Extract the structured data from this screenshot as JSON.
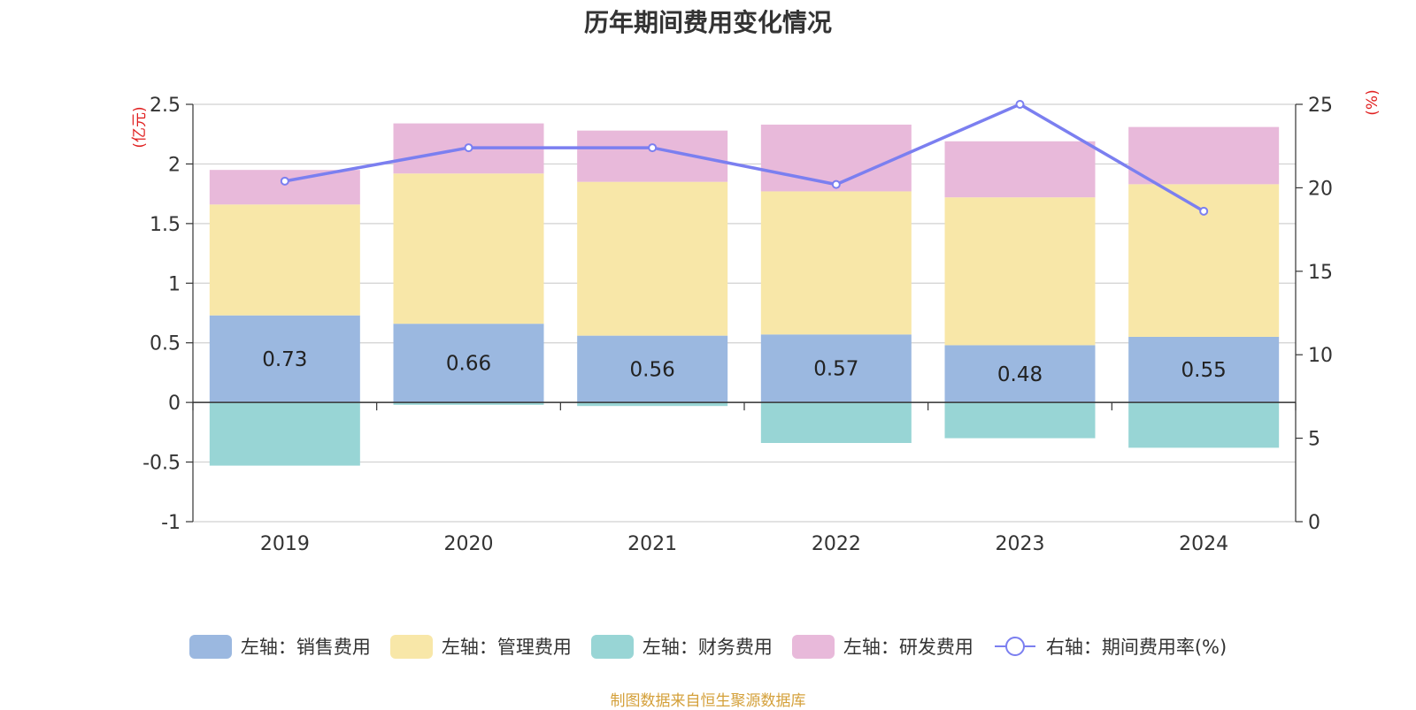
{
  "chart_data": {
    "type": "bar",
    "title": "历年期间费用变化情况",
    "left_axis_unit": "(亿元)",
    "right_axis_unit": "(%)",
    "categories": [
      "2019",
      "2020",
      "2021",
      "2022",
      "2023",
      "2024"
    ],
    "ylim_left": [
      -1,
      2.5
    ],
    "yticks_left": [
      "2.5",
      "2",
      "1.5",
      "1",
      "0.5",
      "0",
      "-0.5",
      "-1"
    ],
    "ylim_right": [
      0,
      25
    ],
    "yticks_right": [
      "25",
      "20",
      "15",
      "10",
      "5",
      "0"
    ],
    "grid": true,
    "legend_position": "bottom",
    "series": [
      {
        "name": "左轴：销售费用",
        "axis": "left",
        "color": "#9bb8e0",
        "values": [
          0.73,
          0.66,
          0.56,
          0.57,
          0.48,
          0.55
        ],
        "labels": [
          "0.73",
          "0.66",
          "0.56",
          "0.57",
          "0.48",
          "0.55"
        ]
      },
      {
        "name": "左轴：管理费用",
        "axis": "left",
        "color": "#f8e7a8",
        "values": [
          0.93,
          1.26,
          1.29,
          1.2,
          1.24,
          1.28
        ]
      },
      {
        "name": "左轴：财务费用",
        "axis": "left",
        "color": "#98d5d5",
        "values": [
          -0.53,
          -0.02,
          -0.03,
          -0.34,
          -0.3,
          -0.38
        ]
      },
      {
        "name": "左轴：研发费用",
        "axis": "left",
        "color": "#e8b9da",
        "values": [
          0.29,
          0.42,
          0.43,
          0.56,
          0.47,
          0.48
        ]
      },
      {
        "name": "右轴：期间费用率(%)",
        "axis": "right",
        "type": "line",
        "color": "#7b7ff0",
        "values": [
          20.4,
          22.4,
          22.4,
          20.2,
          25.0,
          18.6
        ]
      }
    ]
  },
  "source_text": "制图数据来自恒生聚源数据库"
}
